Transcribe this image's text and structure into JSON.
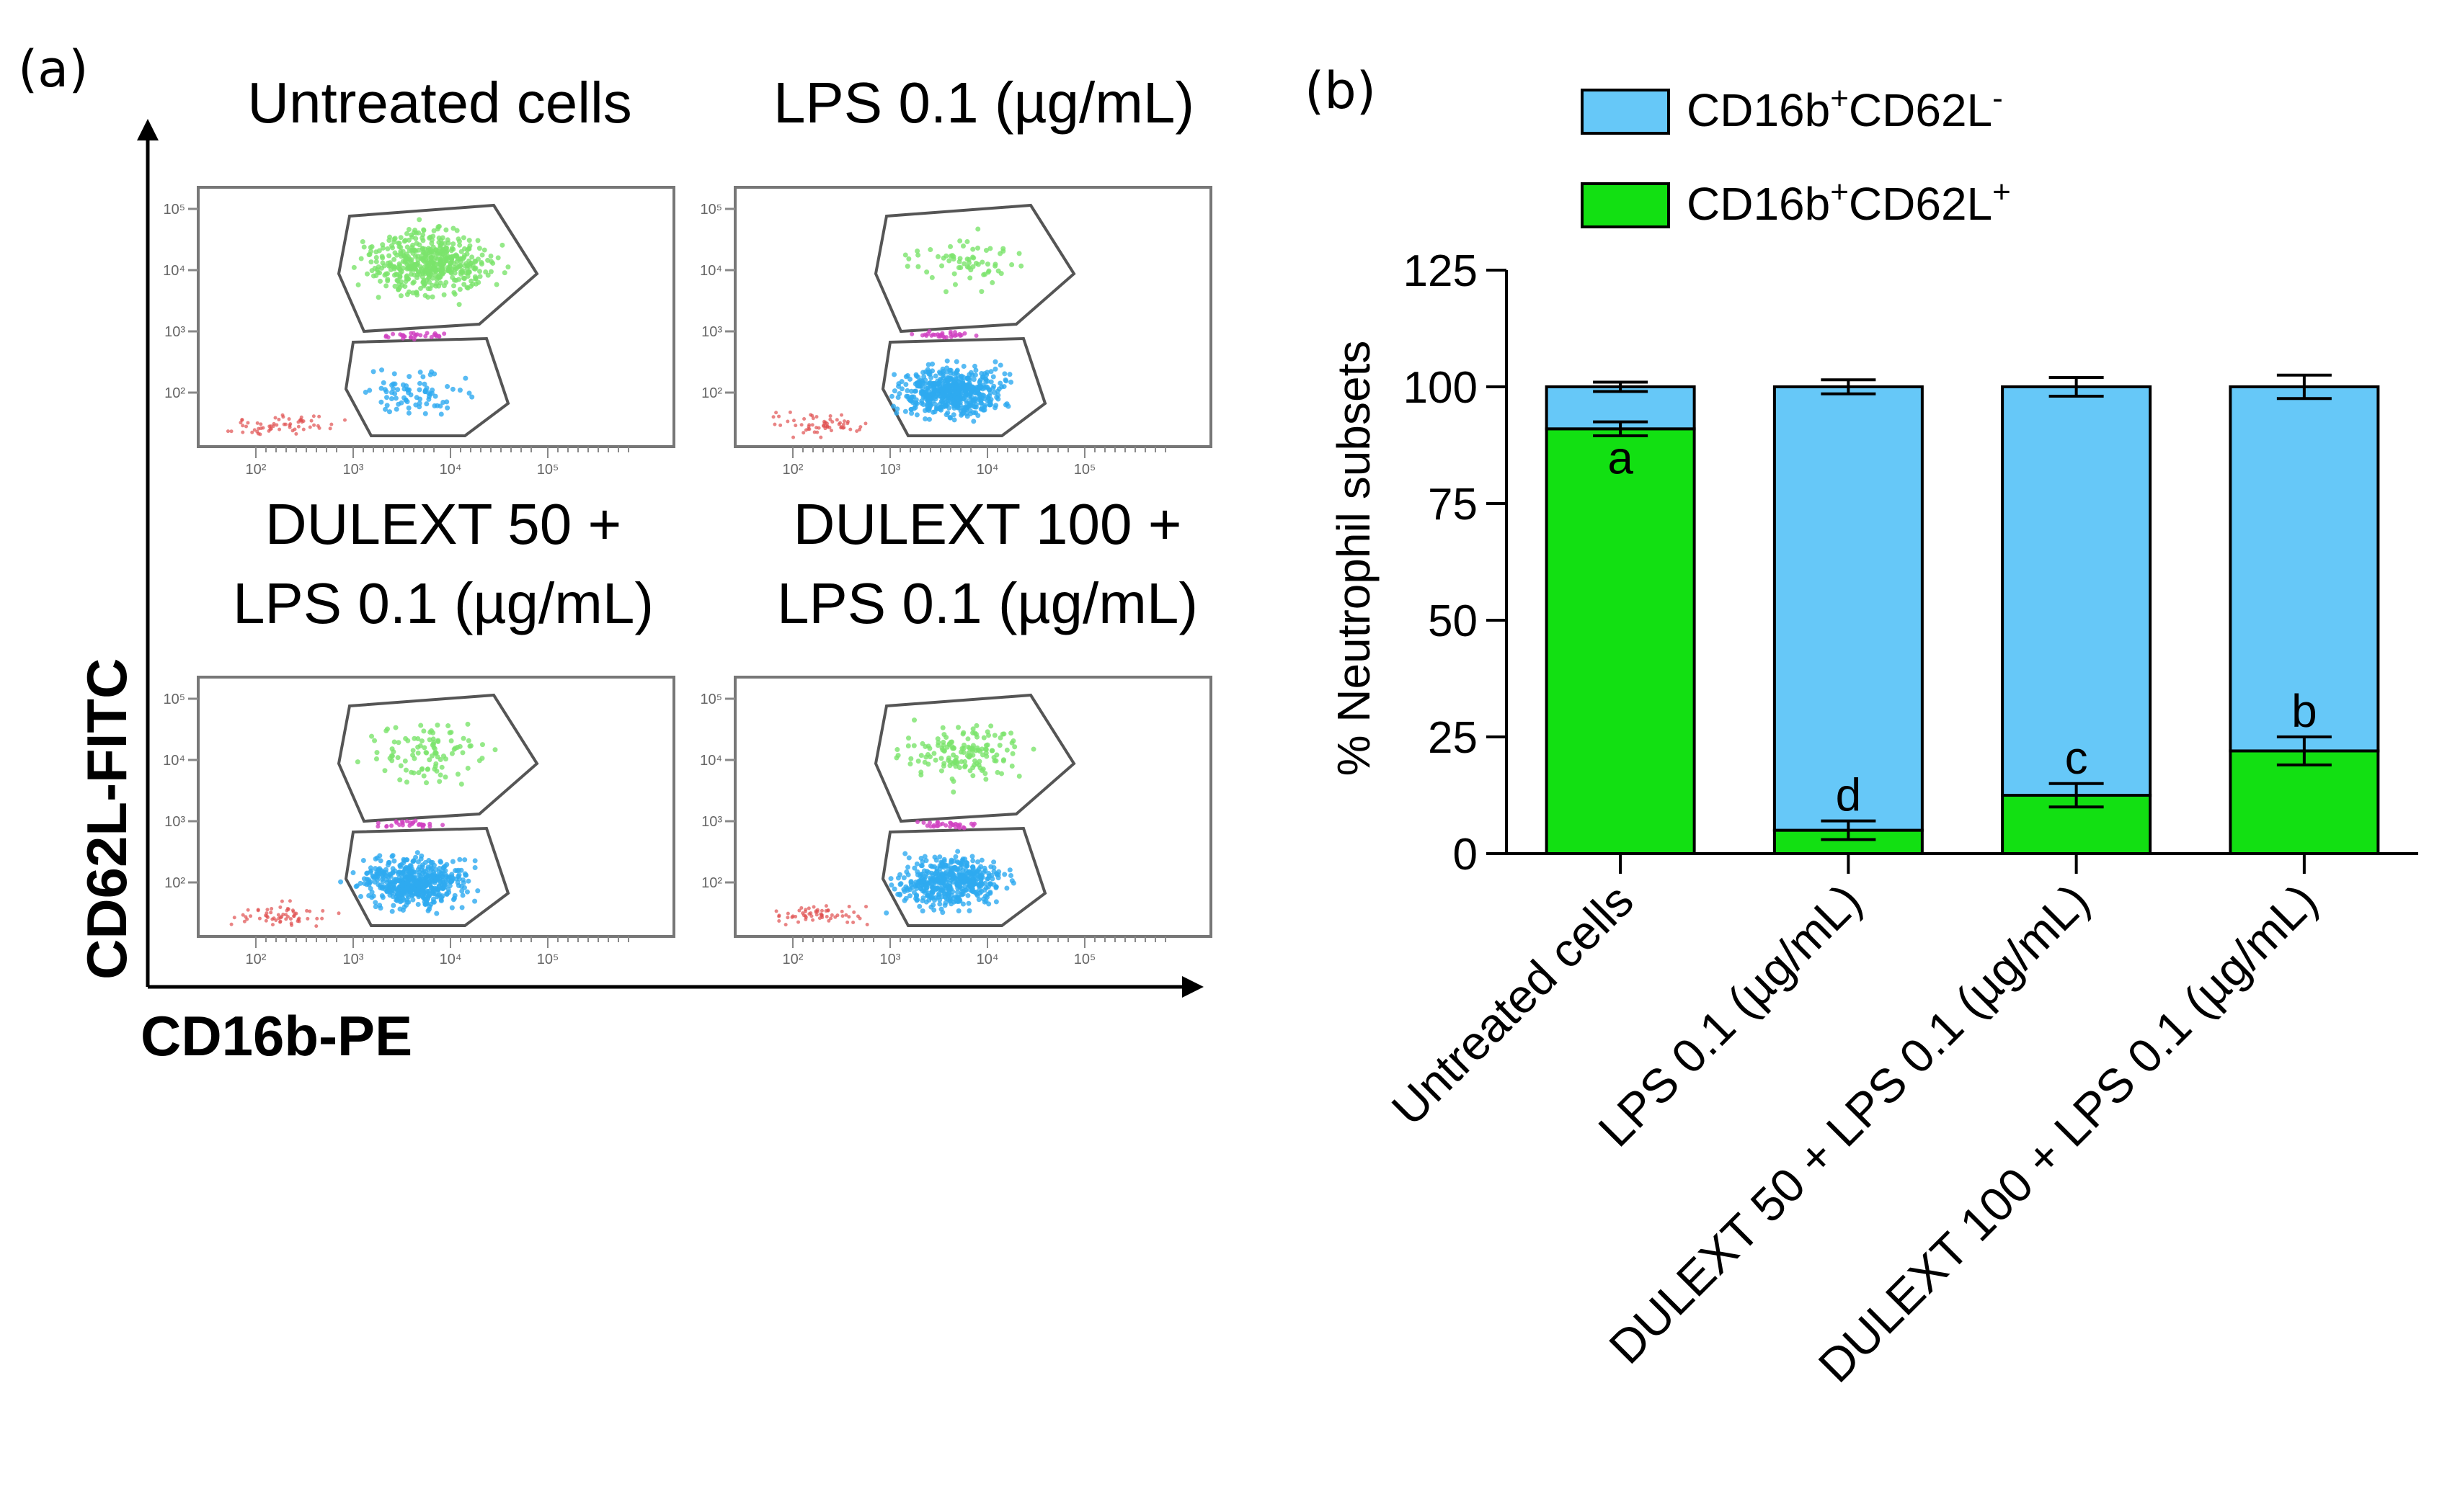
{
  "panel_a": {
    "label": "(a)",
    "y_axis_label": "CD62L-FITC",
    "x_axis_label": "CD16b-PE",
    "plots": [
      {
        "title_lines": [
          "Untreated cells"
        ],
        "green_density": 0.91,
        "blue_density": 0.09
      },
      {
        "title_lines": [
          "LPS 0.1 (µg/mL)"
        ],
        "green_density": 0.05,
        "blue_density": 0.95
      },
      {
        "title_lines": [
          "DULEXT 50 +",
          "LPS 0.1 (µg/mL)"
        ],
        "green_density": 0.12,
        "blue_density": 0.88
      },
      {
        "title_lines": [
          "DULEXT 100 +",
          "LPS 0.1 (µg/mL)"
        ],
        "green_density": 0.22,
        "blue_density": 0.78
      }
    ],
    "tick_labels": [
      "10²",
      "10³",
      "10⁴",
      "10⁵"
    ]
  },
  "panel_b": {
    "label": "(b)"
  },
  "colors": {
    "green": "#12e012",
    "blue": "#66c8f8",
    "scatter_green": "#7be36b",
    "scatter_blue": "#2eaaf0",
    "scatter_red": "#e05050",
    "scatter_magenta": "#d040c0"
  },
  "chart_data": {
    "type": "bar",
    "stacked": true,
    "categories": [
      "Untreated cells",
      "LPS 0.1 (µg/mL)",
      "DULEXT 50 + LPS 0.1 (µg/mL)",
      "DULEXT 100 + LPS 0.1 (µg/mL)"
    ],
    "series": [
      {
        "name": "CD16b⁺CD62L⁺",
        "legend_main": "CD16b",
        "legend_mid": "CD62L",
        "legend_sup1": "+",
        "legend_sup2": "+",
        "values": [
          91,
          5,
          12.5,
          22
        ],
        "errors": [
          1.5,
          2,
          2.5,
          3
        ]
      },
      {
        "name": "CD16b⁺CD62L⁻",
        "legend_main": "CD16b",
        "legend_mid": "CD62L",
        "legend_sup1": "+",
        "legend_sup2": "-",
        "values": [
          9,
          95,
          87.5,
          78
        ],
        "errors": [
          1,
          1.5,
          2,
          2.5
        ]
      }
    ],
    "significance": [
      "a",
      "d",
      "c",
      "b"
    ],
    "ylabel": "% Neutrophil subsets",
    "xlabel": "",
    "ylim": [
      0,
      125
    ],
    "yticks": [
      0,
      25,
      50,
      75,
      100,
      125
    ],
    "legend": "top"
  }
}
